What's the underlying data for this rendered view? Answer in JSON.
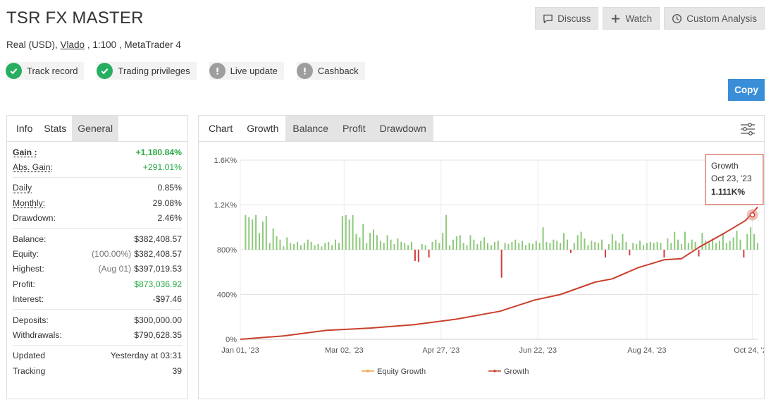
{
  "header": {
    "title": "TSR FX MASTER",
    "account_type": "Real (USD),",
    "owner": "Vlado",
    "leverage_platform": ", 1:100 , MetaTrader 4"
  },
  "actions": {
    "discuss": "Discuss",
    "watch": "Watch",
    "custom_analysis": "Custom Analysis",
    "copy": "Copy"
  },
  "badges": [
    {
      "label": "Track record",
      "status": "ok"
    },
    {
      "label": "Trading privileges",
      "status": "ok"
    },
    {
      "label": "Live update",
      "status": "warn"
    },
    {
      "label": "Cashback",
      "status": "warn"
    }
  ],
  "left_tabs": [
    "Info",
    "Stats",
    "General"
  ],
  "stats": {
    "gain": {
      "label": "Gain :",
      "value": "+1,180.84%"
    },
    "abs_gain": {
      "label": "Abs. Gain:",
      "value": "+291.01%"
    },
    "daily": {
      "label": "Daily",
      "value": "0.85%"
    },
    "monthly": {
      "label": "Monthly:",
      "value": "29.08%"
    },
    "drawdown": {
      "label": "Drawdown:",
      "value": "2.46%"
    },
    "balance": {
      "label": "Balance:",
      "value": "$382,408.57"
    },
    "equity": {
      "label": "Equity:",
      "note": "(100.00%)",
      "value": "$382,408.57"
    },
    "highest": {
      "label": "Highest:",
      "note": "(Aug 01)",
      "value": "$397,019.53"
    },
    "profit": {
      "label": "Profit:",
      "value": "$873,036.92"
    },
    "interest": {
      "label": "Interest:",
      "value": "-$97.46"
    },
    "deposits": {
      "label": "Deposits:",
      "value": "$300,000.00"
    },
    "withdrawals": {
      "label": "Withdrawals:",
      "value": "$790,628.35"
    },
    "updated": {
      "label": "Updated",
      "value": "Yesterday at 03:31"
    },
    "tracking": {
      "label": "Tracking",
      "value": "39"
    }
  },
  "chart_tabs": [
    "Chart",
    "Growth",
    "Balance",
    "Profit",
    "Drawdown"
  ],
  "chart_data": {
    "type": "line",
    "title": "Growth",
    "y_unit": "%",
    "ylim": [
      0,
      1600
    ],
    "y_ticks": [
      0,
      400,
      800,
      1200,
      1600
    ],
    "y_tick_labels": [
      "0%",
      "400%",
      "800%",
      "1.2K%",
      "1.6K%"
    ],
    "x_range_days": [
      0,
      299
    ],
    "x_ticks": [
      0,
      60,
      116,
      172,
      235,
      296
    ],
    "x_tick_labels": [
      "Jan 01, '23",
      "Mar 02, '23",
      "Apr 27, '23",
      "Jun 22, '23",
      "Aug 24, '23",
      "Oct 24, '23"
    ],
    "legend": [
      "Equity Growth",
      "Growth"
    ],
    "series": [
      {
        "name": "Growth",
        "color": "#c9402c",
        "points": [
          [
            0,
            0
          ],
          [
            25,
            30
          ],
          [
            50,
            80
          ],
          [
            75,
            100
          ],
          [
            100,
            130
          ],
          [
            125,
            180
          ],
          [
            150,
            250
          ],
          [
            170,
            350
          ],
          [
            185,
            400
          ],
          [
            205,
            510
          ],
          [
            215,
            540
          ],
          [
            230,
            640
          ],
          [
            245,
            710
          ],
          [
            255,
            720
          ],
          [
            265,
            820
          ],
          [
            280,
            950
          ],
          [
            292,
            1060
          ],
          [
            299,
            1180
          ]
        ]
      },
      {
        "name": "Daily Growth Bars",
        "color_pos": "#8cc97a",
        "color_neg": "#d93b3b",
        "baseline": 800,
        "values": [
          [
            3,
            310
          ],
          [
            5,
            290
          ],
          [
            7,
            270
          ],
          [
            9,
            310
          ],
          [
            11,
            150
          ],
          [
            13,
            250
          ],
          [
            15,
            300
          ],
          [
            17,
            60
          ],
          [
            19,
            190
          ],
          [
            21,
            120
          ],
          [
            23,
            90
          ],
          [
            25,
            30
          ],
          [
            27,
            110
          ],
          [
            29,
            60
          ],
          [
            31,
            50
          ],
          [
            33,
            70
          ],
          [
            35,
            40
          ],
          [
            37,
            60
          ],
          [
            39,
            90
          ],
          [
            41,
            70
          ],
          [
            43,
            40
          ],
          [
            45,
            50
          ],
          [
            47,
            30
          ],
          [
            49,
            60
          ],
          [
            51,
            70
          ],
          [
            53,
            40
          ],
          [
            55,
            90
          ],
          [
            57,
            60
          ],
          [
            59,
            300
          ],
          [
            61,
            310
          ],
          [
            63,
            270
          ],
          [
            65,
            310
          ],
          [
            67,
            140
          ],
          [
            69,
            110
          ],
          [
            71,
            230
          ],
          [
            73,
            60
          ],
          [
            75,
            150
          ],
          [
            77,
            180
          ],
          [
            79,
            130
          ],
          [
            81,
            80
          ],
          [
            83,
            60
          ],
          [
            85,
            130
          ],
          [
            87,
            90
          ],
          [
            89,
            50
          ],
          [
            91,
            100
          ],
          [
            93,
            70
          ],
          [
            95,
            60
          ],
          [
            97,
            40
          ],
          [
            99,
            70
          ],
          [
            101,
            -100
          ],
          [
            103,
            -110
          ],
          [
            105,
            50
          ],
          [
            107,
            40
          ],
          [
            109,
            -70
          ],
          [
            111,
            70
          ],
          [
            113,
            90
          ],
          [
            115,
            60
          ],
          [
            117,
            150
          ],
          [
            119,
            310
          ],
          [
            121,
            40
          ],
          [
            123,
            90
          ],
          [
            125,
            120
          ],
          [
            127,
            130
          ],
          [
            129,
            60
          ],
          [
            131,
            40
          ],
          [
            133,
            130
          ],
          [
            135,
            90
          ],
          [
            137,
            50
          ],
          [
            139,
            80
          ],
          [
            141,
            110
          ],
          [
            143,
            60
          ],
          [
            145,
            40
          ],
          [
            147,
            70
          ],
          [
            149,
            80
          ],
          [
            151,
            -250
          ],
          [
            153,
            60
          ],
          [
            155,
            50
          ],
          [
            157,
            70
          ],
          [
            159,
            90
          ],
          [
            161,
            60
          ],
          [
            163,
            80
          ],
          [
            165,
            40
          ],
          [
            167,
            60
          ],
          [
            169,
            50
          ],
          [
            171,
            80
          ],
          [
            173,
            60
          ],
          [
            175,
            200
          ],
          [
            177,
            70
          ],
          [
            179,
            60
          ],
          [
            181,
            90
          ],
          [
            183,
            80
          ],
          [
            185,
            60
          ],
          [
            187,
            150
          ],
          [
            189,
            90
          ],
          [
            191,
            -30
          ],
          [
            193,
            60
          ],
          [
            195,
            130
          ],
          [
            197,
            160
          ],
          [
            199,
            100
          ],
          [
            201,
            40
          ],
          [
            203,
            80
          ],
          [
            205,
            70
          ],
          [
            207,
            60
          ],
          [
            209,
            90
          ],
          [
            211,
            -70
          ],
          [
            213,
            50
          ],
          [
            215,
            140
          ],
          [
            217,
            80
          ],
          [
            219,
            60
          ],
          [
            221,
            140
          ],
          [
            223,
            70
          ],
          [
            225,
            -50
          ],
          [
            227,
            60
          ],
          [
            229,
            50
          ],
          [
            231,
            80
          ],
          [
            233,
            40
          ],
          [
            235,
            60
          ],
          [
            237,
            70
          ],
          [
            239,
            60
          ],
          [
            241,
            70
          ],
          [
            243,
            60
          ],
          [
            245,
            -70
          ],
          [
            247,
            100
          ],
          [
            249,
            60
          ],
          [
            251,
            160
          ],
          [
            253,
            90
          ],
          [
            255,
            50
          ],
          [
            257,
            160
          ],
          [
            259,
            60
          ],
          [
            261,
            90
          ],
          [
            263,
            70
          ],
          [
            265,
            -60
          ],
          [
            267,
            150
          ],
          [
            269,
            80
          ],
          [
            271,
            60
          ],
          [
            273,
            100
          ],
          [
            275,
            60
          ],
          [
            277,
            80
          ],
          [
            279,
            150
          ],
          [
            281,
            60
          ],
          [
            283,
            80
          ],
          [
            285,
            110
          ],
          [
            287,
            170
          ],
          [
            289,
            90
          ],
          [
            291,
            -70
          ],
          [
            293,
            140
          ],
          [
            295,
            200
          ],
          [
            297,
            140
          ],
          [
            299,
            60
          ]
        ]
      }
    ],
    "tooltip": {
      "series": "Growth",
      "date": "Oct 23, '23",
      "value": "1.111K%"
    }
  }
}
